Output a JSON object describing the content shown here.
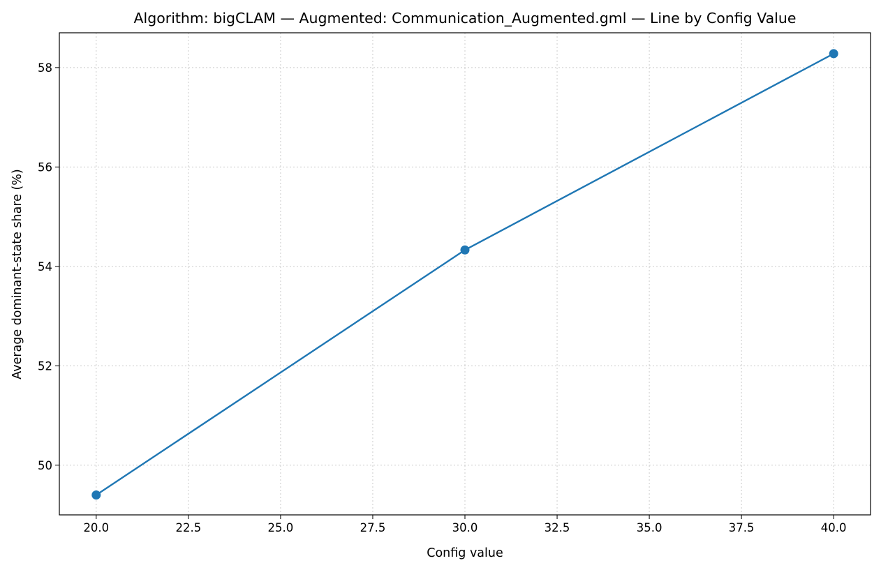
{
  "chart_data": {
    "type": "line",
    "title": "Algorithm: bigCLAM — Augmented: Communication_Augmented.gml — Line by Config Value",
    "xlabel": "Config value",
    "ylabel": "Average dominant-state share (%)",
    "x": [
      20,
      30,
      40
    ],
    "series": [
      {
        "values": [
          49.4,
          54.33,
          58.28
        ],
        "color": "#1f77b4",
        "marker": "circle"
      }
    ],
    "xlim": [
      19,
      41
    ],
    "ylim": [
      49.0,
      58.7
    ],
    "xticks": [
      20.0,
      22.5,
      25.0,
      27.5,
      30.0,
      32.5,
      35.0,
      37.5,
      40.0
    ],
    "xtick_labels": [
      "20.0",
      "22.5",
      "25.0",
      "27.5",
      "30.0",
      "32.5",
      "35.0",
      "37.5",
      "40.0"
    ],
    "yticks": [
      50,
      52,
      54,
      56,
      58
    ],
    "ytick_labels": [
      "50",
      "52",
      "54",
      "56",
      "58"
    ],
    "grid": true,
    "grid_style": "dotted",
    "grid_color": "#cccccc",
    "legend": "none"
  }
}
